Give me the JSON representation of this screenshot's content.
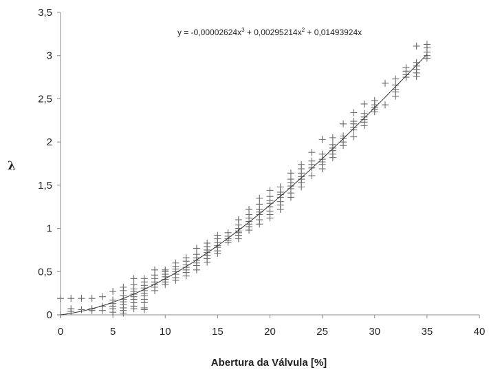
{
  "chart_data": {
    "type": "scatter",
    "title": "",
    "xlabel": "Abertura da Válvula [%]",
    "ylabel": "λ",
    "xlim": [
      0,
      40
    ],
    "ylim": [
      0,
      3.5
    ],
    "x_ticks": [
      "0",
      "5",
      "10",
      "15",
      "20",
      "25",
      "30",
      "35",
      "40"
    ],
    "y_ticks": [
      "0",
      "0,5",
      "1",
      "1,5",
      "2",
      "2,5",
      "3",
      "3,5"
    ],
    "grid": false,
    "legend": "none",
    "marker": "plus",
    "trendline": {
      "kind": "polynomial-3",
      "coefficients": {
        "a3": -2.624e-05,
        "a2": 0.00295214,
        "a1": 0.01493924,
        "a0": 0
      },
      "equation_parts": [
        "y = -0,00002624x",
        "3",
        " + 0,00295214x",
        "2",
        " + 0,01493924x"
      ]
    },
    "points": [
      [
        0,
        0.19
      ],
      [
        0,
        0.0
      ],
      [
        1,
        0.19
      ],
      [
        1,
        0.07
      ],
      [
        1,
        0.04
      ],
      [
        2,
        0.19
      ],
      [
        2,
        0.06
      ],
      [
        3,
        0.19
      ],
      [
        3,
        0.07
      ],
      [
        3,
        0.05
      ],
      [
        4,
        0.21
      ],
      [
        4,
        0.1
      ],
      [
        4,
        0.05
      ],
      [
        5,
        0.27
      ],
      [
        5,
        0.17
      ],
      [
        5,
        0.13
      ],
      [
        5,
        0.1
      ],
      [
        5,
        0.07
      ],
      [
        5,
        0.03
      ],
      [
        6,
        0.32
      ],
      [
        6,
        0.28
      ],
      [
        6,
        0.22
      ],
      [
        6,
        0.18
      ],
      [
        6,
        0.15
      ],
      [
        6,
        0.12
      ],
      [
        6,
        0.08
      ],
      [
        6,
        0.05
      ],
      [
        6,
        0.02
      ],
      [
        7,
        0.42
      ],
      [
        7,
        0.35
      ],
      [
        7,
        0.3
      ],
      [
        7,
        0.27
      ],
      [
        7,
        0.24
      ],
      [
        7,
        0.21
      ],
      [
        7,
        0.18
      ],
      [
        7,
        0.14
      ],
      [
        7,
        0.1
      ],
      [
        7,
        0.07
      ],
      [
        8,
        0.42
      ],
      [
        8,
        0.38
      ],
      [
        8,
        0.34
      ],
      [
        8,
        0.31
      ],
      [
        8,
        0.28
      ],
      [
        8,
        0.25
      ],
      [
        8,
        0.22
      ],
      [
        8,
        0.18
      ],
      [
        8,
        0.14
      ],
      [
        8,
        0.08
      ],
      [
        8,
        0.06
      ],
      [
        9,
        0.52
      ],
      [
        9,
        0.46
      ],
      [
        9,
        0.42
      ],
      [
        9,
        0.38
      ],
      [
        9,
        0.35
      ],
      [
        9,
        0.32
      ],
      [
        9,
        0.28
      ],
      [
        10,
        0.52
      ],
      [
        10,
        0.5
      ],
      [
        10,
        0.47
      ],
      [
        10,
        0.44
      ],
      [
        10,
        0.41
      ],
      [
        10,
        0.38
      ],
      [
        10,
        0.35
      ],
      [
        11,
        0.6
      ],
      [
        11,
        0.56
      ],
      [
        11,
        0.53
      ],
      [
        11,
        0.5
      ],
      [
        11,
        0.47
      ],
      [
        11,
        0.43
      ],
      [
        11,
        0.4
      ],
      [
        12,
        0.66
      ],
      [
        12,
        0.62
      ],
      [
        12,
        0.58
      ],
      [
        12,
        0.55
      ],
      [
        12,
        0.52
      ],
      [
        12,
        0.49
      ],
      [
        12,
        0.45
      ],
      [
        13,
        0.77
      ],
      [
        13,
        0.7
      ],
      [
        13,
        0.66
      ],
      [
        13,
        0.63
      ],
      [
        13,
        0.6
      ],
      [
        13,
        0.57
      ],
      [
        13,
        0.52
      ],
      [
        14,
        0.83
      ],
      [
        14,
        0.79
      ],
      [
        14,
        0.75
      ],
      [
        14,
        0.72
      ],
      [
        14,
        0.69
      ],
      [
        14,
        0.65
      ],
      [
        14,
        0.61
      ],
      [
        15,
        0.92
      ],
      [
        15,
        0.88
      ],
      [
        15,
        0.84
      ],
      [
        15,
        0.8
      ],
      [
        15,
        0.78
      ],
      [
        15,
        0.74
      ],
      [
        15,
        0.71
      ],
      [
        16,
        0.95
      ],
      [
        16,
        0.91
      ],
      [
        16,
        0.88
      ],
      [
        16,
        0.86
      ],
      [
        16,
        0.84
      ],
      [
        17,
        1.1
      ],
      [
        17,
        1.04
      ],
      [
        17,
        1.0
      ],
      [
        17,
        0.97
      ],
      [
        17,
        0.95
      ],
      [
        17,
        0.92
      ],
      [
        17,
        0.88
      ],
      [
        18,
        1.22
      ],
      [
        18,
        1.16
      ],
      [
        18,
        1.12
      ],
      [
        18,
        1.08
      ],
      [
        18,
        1.05
      ],
      [
        18,
        1.02
      ],
      [
        18,
        0.98
      ],
      [
        19,
        1.35
      ],
      [
        19,
        1.28
      ],
      [
        19,
        1.22
      ],
      [
        19,
        1.19
      ],
      [
        19,
        1.16
      ],
      [
        19,
        1.1
      ],
      [
        19,
        1.05
      ],
      [
        20,
        1.44
      ],
      [
        20,
        1.37
      ],
      [
        20,
        1.32
      ],
      [
        20,
        1.29
      ],
      [
        20,
        1.25
      ],
      [
        20,
        1.2
      ],
      [
        20,
        1.16
      ],
      [
        20,
        1.12
      ],
      [
        21,
        1.48
      ],
      [
        21,
        1.42
      ],
      [
        21,
        1.39
      ],
      [
        21,
        1.36
      ],
      [
        21,
        1.31
      ],
      [
        21,
        1.27
      ],
      [
        21,
        1.22
      ],
      [
        22,
        1.64
      ],
      [
        22,
        1.57
      ],
      [
        22,
        1.53
      ],
      [
        22,
        1.49
      ],
      [
        22,
        1.46
      ],
      [
        22,
        1.41
      ],
      [
        22,
        1.36
      ],
      [
        23,
        1.74
      ],
      [
        23,
        1.69
      ],
      [
        23,
        1.64
      ],
      [
        23,
        1.6
      ],
      [
        23,
        1.57
      ],
      [
        23,
        1.53
      ],
      [
        23,
        1.48
      ],
      [
        24,
        1.88
      ],
      [
        24,
        1.78
      ],
      [
        24,
        1.74
      ],
      [
        24,
        1.7
      ],
      [
        24,
        1.61
      ],
      [
        25,
        2.03
      ],
      [
        25,
        1.86
      ],
      [
        25,
        1.8
      ],
      [
        25,
        1.77
      ],
      [
        25,
        1.74
      ],
      [
        25,
        1.69
      ],
      [
        26,
        2.05
      ],
      [
        26,
        1.97
      ],
      [
        26,
        1.93
      ],
      [
        26,
        1.9
      ],
      [
        26,
        1.86
      ],
      [
        26,
        1.82
      ],
      [
        27,
        2.21
      ],
      [
        27,
        2.07
      ],
      [
        27,
        2.04
      ],
      [
        27,
        2.0
      ],
      [
        27,
        1.96
      ],
      [
        28,
        2.34
      ],
      [
        28,
        2.24
      ],
      [
        28,
        2.21
      ],
      [
        28,
        2.17
      ],
      [
        28,
        2.14
      ],
      [
        28,
        2.06
      ],
      [
        29,
        2.44
      ],
      [
        29,
        2.33
      ],
      [
        29,
        2.29
      ],
      [
        29,
        2.26
      ],
      [
        29,
        2.23
      ],
      [
        29,
        2.19
      ],
      [
        30,
        2.48
      ],
      [
        30,
        2.43
      ],
      [
        30,
        2.4
      ],
      [
        30,
        2.38
      ],
      [
        30,
        2.35
      ],
      [
        31,
        2.68
      ],
      [
        31,
        2.43
      ],
      [
        32,
        2.73
      ],
      [
        32,
        2.66
      ],
      [
        32,
        2.61
      ],
      [
        32,
        2.58
      ],
      [
        32,
        2.53
      ],
      [
        33,
        2.86
      ],
      [
        33,
        2.82
      ],
      [
        33,
        2.78
      ],
      [
        33,
        2.75
      ],
      [
        34,
        3.11
      ],
      [
        34,
        2.92
      ],
      [
        34,
        2.88
      ],
      [
        34,
        2.84
      ],
      [
        34,
        2.8
      ],
      [
        34,
        2.76
      ],
      [
        35,
        3.13
      ],
      [
        35,
        3.09
      ],
      [
        35,
        3.04
      ],
      [
        35,
        3.0
      ],
      [
        35,
        2.97
      ]
    ]
  }
}
